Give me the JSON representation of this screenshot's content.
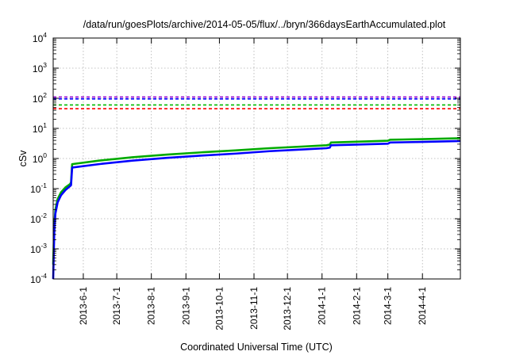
{
  "chart_data": {
    "type": "line",
    "title": "/data/run/goesPlots/archive/2014-05-05/flux/../bryn/366daysEarthAccumulated.plot",
    "xlabel": "Coordinated Universal Time (UTC)",
    "ylabel": "cSv",
    "yscale": "log",
    "ylim": [
      0.0001,
      10000
    ],
    "xlim": [
      "2013-05-05",
      "2014-05-05"
    ],
    "grid": true,
    "yticks": [
      {
        "value": 0.0001,
        "base": "10",
        "exp": "-4"
      },
      {
        "value": 0.001,
        "base": "10",
        "exp": "-3"
      },
      {
        "value": 0.01,
        "base": "10",
        "exp": "-2"
      },
      {
        "value": 0.1,
        "base": "10",
        "exp": "-1"
      },
      {
        "value": 1,
        "base": "10",
        "exp": "0"
      },
      {
        "value": 10,
        "base": "10",
        "exp": "1"
      },
      {
        "value": 100,
        "base": "10",
        "exp": "2"
      },
      {
        "value": 1000,
        "base": "10",
        "exp": "3"
      },
      {
        "value": 10000,
        "base": "10",
        "exp": "4"
      }
    ],
    "xticks": [
      {
        "date": "2013-06-01",
        "label": "2013-6-1"
      },
      {
        "date": "2013-07-01",
        "label": "2013-7-1"
      },
      {
        "date": "2013-08-01",
        "label": "2013-8-1"
      },
      {
        "date": "2013-09-01",
        "label": "2013-9-1"
      },
      {
        "date": "2013-10-01",
        "label": "2013-10-1"
      },
      {
        "date": "2013-11-01",
        "label": "2013-11-1"
      },
      {
        "date": "2013-12-01",
        "label": "2013-12-1"
      },
      {
        "date": "2014-01-01",
        "label": "2014-1-1"
      },
      {
        "date": "2014-02-01",
        "label": "2014-2-1"
      },
      {
        "date": "2014-03-01",
        "label": "2014-3-1"
      },
      {
        "date": "2014-04-01",
        "label": "2014-4-1"
      }
    ],
    "reference_lines": [
      {
        "value": 110,
        "color": "#9400d3"
      },
      {
        "value": 95,
        "color": "#0000ff"
      },
      {
        "value": 60,
        "color": "#00bb00"
      },
      {
        "value": 45,
        "color": "#ff0000"
      }
    ],
    "series": [
      {
        "color": "#00aa00",
        "points": [
          [
            "2013-05-05",
            0.0003
          ],
          [
            "2013-05-06",
            0.006
          ],
          [
            "2013-05-07",
            0.02
          ],
          [
            "2013-05-09",
            0.045
          ],
          [
            "2013-05-12",
            0.075
          ],
          [
            "2013-05-16",
            0.11
          ],
          [
            "2013-05-20",
            0.14
          ],
          [
            "2013-05-21",
            0.16
          ],
          [
            "2013-05-22",
            0.65
          ],
          [
            "2013-06-15",
            0.85
          ],
          [
            "2013-07-15",
            1.1
          ],
          [
            "2013-08-15",
            1.35
          ],
          [
            "2013-09-15",
            1.6
          ],
          [
            "2013-10-15",
            1.85
          ],
          [
            "2013-11-15",
            2.2
          ],
          [
            "2013-12-15",
            2.5
          ],
          [
            "2014-01-05",
            2.75
          ],
          [
            "2014-01-08",
            2.9
          ],
          [
            "2014-01-09",
            3.4
          ],
          [
            "2014-02-01",
            3.6
          ],
          [
            "2014-03-01",
            3.9
          ],
          [
            "2014-03-03",
            4.2
          ],
          [
            "2014-04-01",
            4.4
          ],
          [
            "2014-05-05",
            4.7
          ]
        ]
      },
      {
        "color": "#0000ff",
        "points": [
          [
            "2013-05-05",
            0.0001
          ],
          [
            "2013-05-06",
            0.004
          ],
          [
            "2013-05-07",
            0.015
          ],
          [
            "2013-05-09",
            0.035
          ],
          [
            "2013-05-12",
            0.06
          ],
          [
            "2013-05-16",
            0.09
          ],
          [
            "2013-05-20",
            0.12
          ],
          [
            "2013-05-21",
            0.13
          ],
          [
            "2013-05-22",
            0.5
          ],
          [
            "2013-06-15",
            0.65
          ],
          [
            "2013-07-15",
            0.85
          ],
          [
            "2013-08-15",
            1.05
          ],
          [
            "2013-09-15",
            1.25
          ],
          [
            "2013-10-15",
            1.45
          ],
          [
            "2013-11-15",
            1.75
          ],
          [
            "2013-12-15",
            2.0
          ],
          [
            "2014-01-05",
            2.2
          ],
          [
            "2014-01-08",
            2.3
          ],
          [
            "2014-01-09",
            2.75
          ],
          [
            "2014-02-01",
            2.9
          ],
          [
            "2014-03-01",
            3.1
          ],
          [
            "2014-03-03",
            3.4
          ],
          [
            "2014-04-01",
            3.55
          ],
          [
            "2014-05-05",
            3.8
          ]
        ]
      }
    ]
  }
}
